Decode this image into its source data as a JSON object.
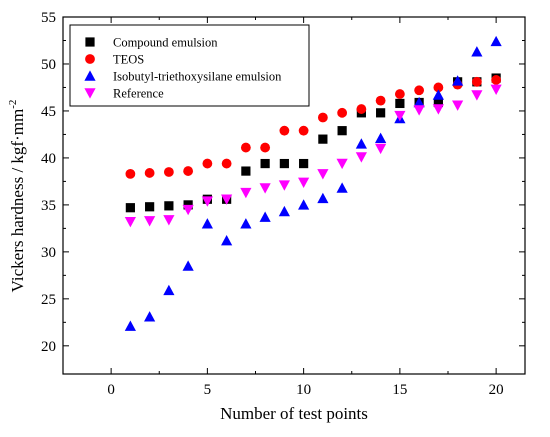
{
  "chart_data": {
    "type": "scatter",
    "xlabel": "Number of test points",
    "ylabel": "Vickers hardness / kgf·mm",
    "ylabel_exponent": "-2",
    "xlim": [
      -2.5,
      21.5
    ],
    "ylim": [
      17,
      55
    ],
    "x_ticks": [
      0,
      5,
      10,
      15,
      20
    ],
    "y_ticks": [
      20,
      25,
      30,
      35,
      40,
      45,
      50,
      55
    ],
    "grid": false,
    "legend_position": "top-left",
    "x": [
      1,
      2,
      3,
      4,
      5,
      6,
      7,
      8,
      9,
      10,
      11,
      12,
      13,
      14,
      15,
      16,
      17,
      18,
      19,
      20
    ],
    "series": [
      {
        "name": "Compound emulsion",
        "marker": "square",
        "color": "#000000",
        "values": [
          34.7,
          34.8,
          34.9,
          35.0,
          35.6,
          35.6,
          38.6,
          39.4,
          39.4,
          39.4,
          42.0,
          42.9,
          44.8,
          44.8,
          45.8,
          45.9,
          45.9,
          48.1,
          48.1,
          48.5
        ]
      },
      {
        "name": "TEOS",
        "marker": "circle",
        "color": "#ff0000",
        "values": [
          38.3,
          38.4,
          38.5,
          38.6,
          39.4,
          39.4,
          41.1,
          41.1,
          42.9,
          42.9,
          44.3,
          44.8,
          45.2,
          46.1,
          46.8,
          47.2,
          47.5,
          47.8,
          48.1,
          48.3
        ]
      },
      {
        "name": "Isobutyl-triethoxysilane emulsion",
        "marker": "triangle-up",
        "color": "#0000ff",
        "values": [
          22.1,
          23.1,
          25.9,
          28.5,
          33.0,
          31.2,
          33.0,
          33.7,
          34.3,
          35.0,
          35.7,
          36.8,
          41.5,
          42.1,
          44.2,
          45.9,
          46.7,
          48.2,
          51.3,
          52.4
        ]
      },
      {
        "name": "Reference",
        "marker": "triangle-down",
        "color": "#ff00ff",
        "values": [
          33.2,
          33.3,
          33.4,
          34.5,
          35.4,
          35.6,
          36.3,
          36.8,
          37.1,
          37.4,
          38.3,
          39.4,
          40.1,
          41.0,
          44.5,
          45.1,
          45.2,
          45.6,
          46.7,
          47.3
        ]
      }
    ]
  }
}
